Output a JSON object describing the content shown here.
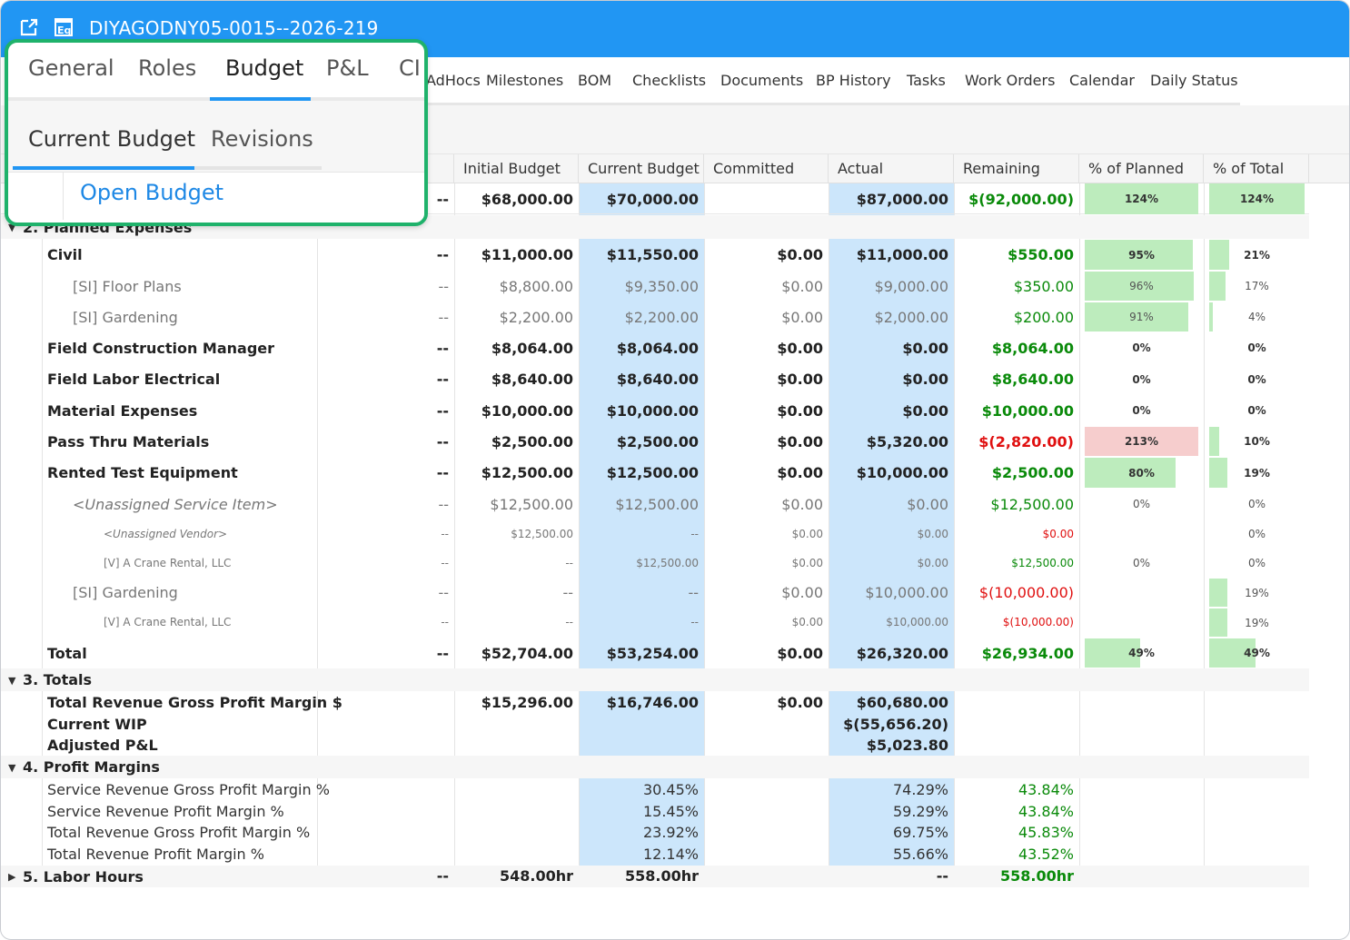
{
  "window": {
    "title": "DIYAGODNY05-0015--2026-219",
    "icons": [
      "external-link-icon",
      "report-icon"
    ]
  },
  "tabs": [
    "AdHocs",
    "Milestones",
    "BOM",
    "Checklists",
    "Documents",
    "BP History",
    "Tasks",
    "Work Orders",
    "Calendar",
    "Daily Status"
  ],
  "columns": {
    "col_partial": "t",
    "initial": "Initial Budget",
    "current": "Current Budget",
    "committed": "Committed",
    "actual": "Actual",
    "remaining": "Remaining",
    "pct_planned": "% of Planned",
    "pct_total": "% of Total"
  },
  "summary_row": {
    "col_partial": "--",
    "initial": "$68,000.00",
    "current": "$70,000.00",
    "committed": "",
    "actual": "$87,000.00",
    "remaining": "$(92,000.00)",
    "pct_planned": "124%",
    "pct_planned_value": 1.24,
    "pct_total": "124%",
    "pct_total_value": 1.24
  },
  "sections": {
    "planned": "2. Planned Expenses",
    "totals": "3. Totals",
    "margins": "4. Profit Margins",
    "labor": "5. Labor Hours"
  },
  "expense_rows": [
    {
      "name": "Civil",
      "style": "bold",
      "c1": "--",
      "initial": "$11,000.00",
      "current": "$11,550.00",
      "committed": "$0.00",
      "actual": "$11,000.00",
      "remaining": "$550.00",
      "rem_color": "green",
      "planned": "95%",
      "planned_v": 0.95,
      "planned_color": "green",
      "total": "21%",
      "total_v": 0.21
    },
    {
      "name": "[SI] Floor Plans",
      "style": "sub",
      "c1": "--",
      "initial": "$8,800.00",
      "current": "$9,350.00",
      "committed": "$0.00",
      "actual": "$9,000.00",
      "remaining": "$350.00",
      "rem_color": "green",
      "planned": "96%",
      "planned_v": 0.96,
      "planned_color": "green",
      "total": "17%",
      "total_v": 0.17
    },
    {
      "name": "[SI] Gardening",
      "style": "sub",
      "c1": "--",
      "initial": "$2,200.00",
      "current": "$2,200.00",
      "committed": "$0.00",
      "actual": "$2,000.00",
      "remaining": "$200.00",
      "rem_color": "green",
      "planned": "91%",
      "planned_v": 0.91,
      "planned_color": "green",
      "total": "4%",
      "total_v": 0.04
    },
    {
      "name": "Field Construction Manager",
      "style": "bold",
      "c1": "--",
      "initial": "$8,064.00",
      "current": "$8,064.00",
      "committed": "$0.00",
      "actual": "$0.00",
      "remaining": "$8,064.00",
      "rem_color": "green",
      "planned": "0%",
      "planned_v": 0,
      "planned_color": "green",
      "total": "0%",
      "total_v": 0
    },
    {
      "name": "Field Labor Electrical",
      "style": "bold",
      "c1": "--",
      "initial": "$8,640.00",
      "current": "$8,640.00",
      "committed": "$0.00",
      "actual": "$0.00",
      "remaining": "$8,640.00",
      "rem_color": "green",
      "planned": "0%",
      "planned_v": 0,
      "planned_color": "green",
      "total": "0%",
      "total_v": 0
    },
    {
      "name": "Material Expenses",
      "style": "bold",
      "c1": "--",
      "initial": "$10,000.00",
      "current": "$10,000.00",
      "committed": "$0.00",
      "actual": "$0.00",
      "remaining": "$10,000.00",
      "rem_color": "green",
      "planned": "0%",
      "planned_v": 0,
      "planned_color": "green",
      "total": "0%",
      "total_v": 0
    },
    {
      "name": "Pass Thru Materials",
      "style": "bold",
      "c1": "--",
      "initial": "$2,500.00",
      "current": "$2,500.00",
      "committed": "$0.00",
      "actual": "$5,320.00",
      "remaining": "$(2,820.00)",
      "rem_color": "red",
      "planned": "213%",
      "planned_v": 2.13,
      "planned_color": "red",
      "total": "10%",
      "total_v": 0.1
    },
    {
      "name": "Rented Test Equipment",
      "style": "bold",
      "c1": "--",
      "initial": "$12,500.00",
      "current": "$12,500.00",
      "committed": "$0.00",
      "actual": "$10,000.00",
      "remaining": "$2,500.00",
      "rem_color": "green",
      "planned": "80%",
      "planned_v": 0.8,
      "planned_color": "green",
      "total": "19%",
      "total_v": 0.19
    },
    {
      "name": "<Unassigned Service Item>",
      "style": "sub-italic",
      "c1": "--",
      "initial": "$12,500.00",
      "current": "$12,500.00",
      "committed": "$0.00",
      "actual": "$0.00",
      "remaining": "$12,500.00",
      "rem_color": "green",
      "planned": "0%",
      "planned_v": 0,
      "planned_color": "green",
      "total": "0%",
      "total_v": 0
    },
    {
      "name": "<Unassigned Vendor>",
      "style": "tiny-italic",
      "c1": "--",
      "initial": "$12,500.00",
      "current": "--",
      "committed": "$0.00",
      "actual": "$0.00",
      "remaining": "$0.00",
      "rem_color": "red",
      "planned": "",
      "planned_v": 0,
      "planned_color": "green",
      "total": "0%",
      "total_v": 0
    },
    {
      "name": "[V] A Crane Rental, LLC",
      "style": "tiny",
      "c1": "--",
      "initial": "--",
      "current": "$12,500.00",
      "committed": "$0.00",
      "actual": "$0.00",
      "remaining": "$12,500.00",
      "rem_color": "green",
      "planned": "0%",
      "planned_v": 0,
      "planned_color": "green",
      "total": "0%",
      "total_v": 0
    },
    {
      "name": "[SI] Gardening",
      "style": "sub",
      "c1": "--",
      "initial": "--",
      "current": "--",
      "committed": "$0.00",
      "actual": "$10,000.00",
      "remaining": "$(10,000.00)",
      "rem_color": "red",
      "planned": "",
      "planned_v": 0,
      "planned_color": "green",
      "total": "19%",
      "total_v": 0.19
    },
    {
      "name": "[V] A Crane Rental, LLC",
      "style": "tiny",
      "c1": "--",
      "initial": "--",
      "current": "--",
      "committed": "$0.00",
      "actual": "$10,000.00",
      "remaining": "$(10,000.00)",
      "rem_color": "red",
      "planned": "",
      "planned_v": 0,
      "planned_color": "green",
      "total": "19%",
      "total_v": 0.19
    },
    {
      "name": "Total",
      "style": "bold",
      "c1": "--",
      "initial": "$52,704.00",
      "current": "$53,254.00",
      "committed": "$0.00",
      "actual": "$26,320.00",
      "remaining": "$26,934.00",
      "rem_color": "green",
      "planned": "49%",
      "planned_v": 0.49,
      "planned_color": "green",
      "total": "49%",
      "total_v": 0.49
    }
  ],
  "totals": {
    "labels": [
      "Total Revenue Gross Profit Margin $",
      "Current WIP",
      "Adjusted P&L"
    ],
    "initial": "$15,296.00",
    "current": "$16,746.00",
    "committed": "$0.00",
    "actual": [
      "$60,680.00",
      "$(55,656.20)",
      "$5,023.80"
    ]
  },
  "margins": [
    {
      "name": "Service Revenue Gross Profit Margin %",
      "current": "30.45%",
      "actual": "74.29%",
      "remaining": "43.84%"
    },
    {
      "name": "Service Revenue Profit Margin %",
      "current": "15.45%",
      "actual": "59.29%",
      "remaining": "43.84%"
    },
    {
      "name": "Total Revenue Gross Profit Margin %",
      "current": "23.92%",
      "actual": "69.75%",
      "remaining": "45.83%"
    },
    {
      "name": "Total Revenue Profit Margin %",
      "current": "12.14%",
      "actual": "55.66%",
      "remaining": "43.52%"
    }
  ],
  "labor": {
    "c1": "--",
    "initial": "548.00hr",
    "current": "558.00hr",
    "actual": "--",
    "remaining": "558.00hr"
  },
  "overlay": {
    "tabs": [
      "General",
      "Roles",
      "Budget",
      "P&L",
      "CI"
    ],
    "active_tab": "Budget",
    "subtabs": [
      "Current Budget",
      "Revisions"
    ],
    "active_subtab": "Current Budget",
    "link": "Open Budget"
  },
  "colors": {
    "header_blue": "#2196f3",
    "highlight_blue": "#cce6fb",
    "bar_green": "#bdecbd",
    "bar_red": "#f6cdcd",
    "text_green": "#0a8a0a",
    "text_red": "#e01010",
    "overlay_border": "#1fb26b",
    "link_blue": "#1e88e5"
  }
}
